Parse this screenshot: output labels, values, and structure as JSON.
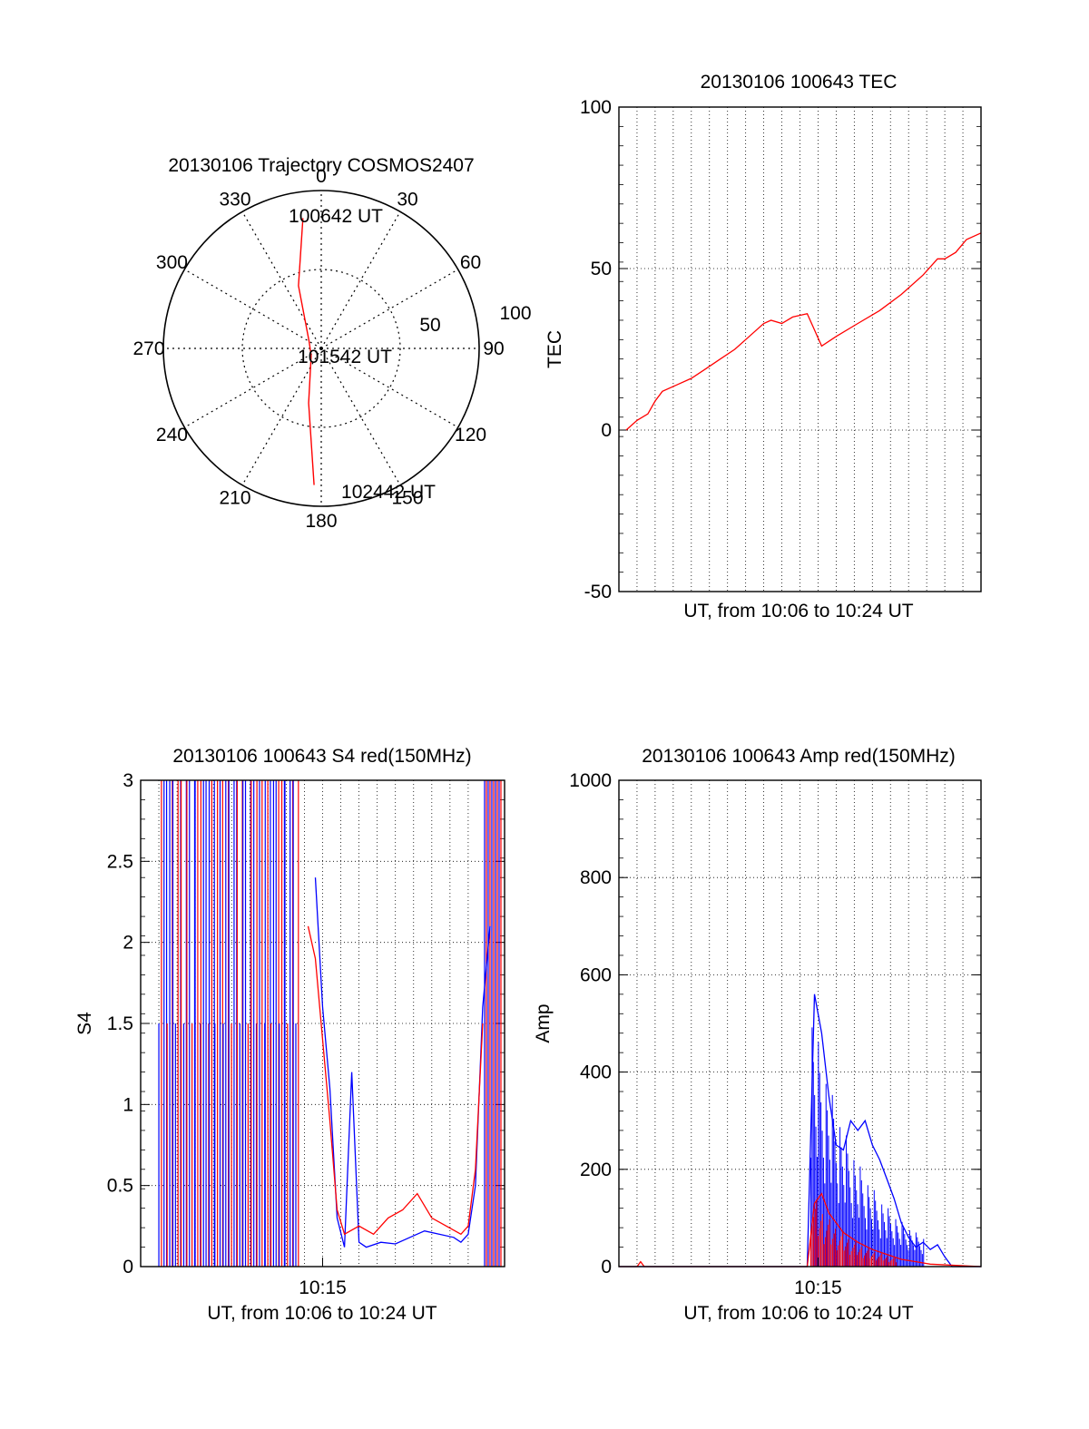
{
  "chart_data": [
    {
      "type": "polar",
      "title": "20130106 Trajectory COSMOS2407",
      "theta_labels": [
        "0",
        "30",
        "60",
        "90",
        "120",
        "150",
        "180",
        "210",
        "240",
        "270",
        "300",
        "330"
      ],
      "radial_labels": [
        "50",
        "100"
      ],
      "annotations": [
        "100642 UT",
        "101542 UT",
        "102442 UT"
      ],
      "trajectory": {
        "color": "#ff0000",
        "points": [
          {
            "azimuth": 352,
            "elevation": 15
          },
          {
            "azimuth": 340,
            "elevation": 52
          },
          {
            "azimuth": 300,
            "elevation": 82
          },
          {
            "azimuth": 235,
            "elevation": 83
          },
          {
            "azimuth": 193,
            "elevation": 58
          },
          {
            "azimuth": 183,
            "elevation": 12
          }
        ]
      }
    },
    {
      "type": "line",
      "title": "20130106 100643 TEC",
      "xlabel": "UT, from 10:06 to 10:24 UT",
      "ylabel": "TEC",
      "ylim": [
        -50,
        100
      ],
      "yticks": [
        "-50",
        "0",
        "50",
        "100"
      ],
      "grid": true,
      "series": [
        {
          "color": "#ff0000",
          "x": [
            0.02,
            0.05,
            0.08,
            0.1,
            0.12,
            0.16,
            0.2,
            0.24,
            0.28,
            0.32,
            0.36,
            0.4,
            0.42,
            0.45,
            0.48,
            0.52,
            0.54,
            0.56,
            0.6,
            0.66,
            0.72,
            0.78,
            0.84,
            0.88,
            0.9,
            0.93,
            0.96,
            1.0
          ],
          "y": [
            0,
            3,
            5,
            9,
            12,
            14,
            16,
            19,
            22,
            25,
            29,
            33,
            34,
            33,
            35,
            36,
            31,
            26,
            29,
            33,
            37,
            42,
            48,
            53,
            53,
            55,
            59,
            61
          ]
        }
      ]
    },
    {
      "type": "line",
      "title": "20130106 100643 S4 red(150MHz)",
      "xlabel": "UT, from 10:06 to 10:24 UT",
      "ylabel": "S4",
      "ylim": [
        0,
        3
      ],
      "yticks": [
        "0",
        "0.5",
        "1",
        "1.5",
        "2",
        "2.5",
        "3"
      ],
      "xticks": [
        "10:15"
      ],
      "grid": true,
      "series": [
        {
          "color": "#0000ff",
          "x": [
            0.48,
            0.5,
            0.52,
            0.54,
            0.56,
            0.58,
            0.6,
            0.62,
            0.66,
            0.7,
            0.74,
            0.78,
            0.82,
            0.86,
            0.88,
            0.9,
            0.92,
            0.94,
            0.96
          ],
          "y": [
            2.4,
            1.6,
            1.1,
            0.3,
            0.12,
            1.2,
            0.15,
            0.12,
            0.15,
            0.14,
            0.18,
            0.22,
            0.2,
            0.18,
            0.15,
            0.2,
            0.5,
            1.6,
            2.1
          ]
        },
        {
          "color": "#ff0000",
          "x": [
            0.46,
            0.48,
            0.5,
            0.52,
            0.54,
            0.56,
            0.6,
            0.64,
            0.68,
            0.72,
            0.76,
            0.8,
            0.84,
            0.88,
            0.9,
            0.92,
            0.94
          ],
          "y": [
            2.1,
            1.9,
            1.4,
            0.9,
            0.35,
            0.2,
            0.25,
            0.2,
            0.3,
            0.35,
            0.45,
            0.3,
            0.25,
            0.2,
            0.25,
            0.6,
            1.5
          ]
        }
      ]
    },
    {
      "type": "line",
      "title": "20130106 100643 Amp red(150MHz)",
      "xlabel": "UT, from 10:06 to 10:24 UT",
      "ylabel": "Amp",
      "ylim": [
        0,
        1000
      ],
      "yticks": [
        "0",
        "200",
        "400",
        "600",
        "800",
        "1000"
      ],
      "xticks": [
        "10:15"
      ],
      "grid": true,
      "series": [
        {
          "color": "#0000ff",
          "x": [
            0.0,
            0.52,
            0.54,
            0.56,
            0.58,
            0.6,
            0.62,
            0.64,
            0.66,
            0.68,
            0.7,
            0.72,
            0.74,
            0.76,
            0.78,
            0.8,
            0.82,
            0.84,
            0.86,
            0.88,
            0.9,
            0.92,
            1.0
          ],
          "y": [
            0,
            0,
            560,
            480,
            350,
            250,
            240,
            300,
            280,
            300,
            250,
            220,
            180,
            140,
            90,
            60,
            40,
            50,
            35,
            45,
            20,
            0,
            0
          ]
        },
        {
          "color": "#ff0000",
          "x": [
            0.0,
            0.05,
            0.06,
            0.07,
            0.52,
            0.54,
            0.56,
            0.58,
            0.6,
            0.62,
            0.66,
            0.7,
            0.74,
            0.78,
            0.82,
            0.86,
            1.0
          ],
          "y": [
            0,
            0,
            10,
            0,
            0,
            130,
            150,
            110,
            90,
            70,
            50,
            35,
            25,
            15,
            10,
            5,
            0
          ]
        }
      ]
    }
  ]
}
